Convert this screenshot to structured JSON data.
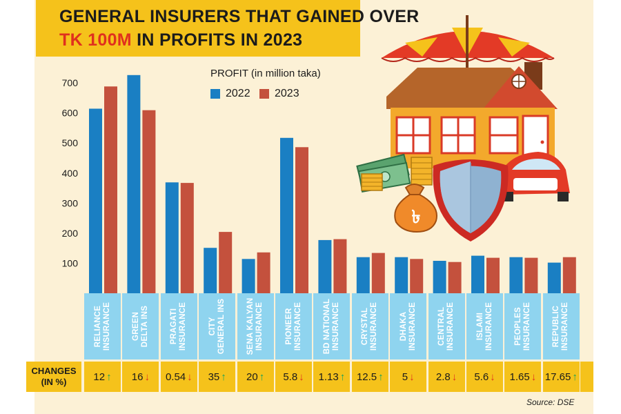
{
  "header": {
    "title_line1": "GENERAL INSURERS THAT GAINED OVER",
    "title_line2_highlight": "TK 100M",
    "title_line2_rest": " IN PROFITS IN 2023"
  },
  "changes_label": {
    "line1": "CHANGES",
    "line2": "(IN %)"
  },
  "source": "Source: DSE",
  "illustration": {
    "icons": [
      "umbrella-icon",
      "house-icon",
      "shield-icon",
      "car-icon",
      "money-bag-icon",
      "cash-stack-icon",
      "coin-stack-icon"
    ]
  },
  "colors": {
    "series_2022": "#1a7fc3",
    "series_2023": "#c4513d",
    "title_band": "#f5c21b",
    "category_band": "#8fd4ef",
    "panel_bg": "#fcf1d6",
    "up_arrow": "#17a35a",
    "down_arrow": "#e0301e"
  },
  "chart_data": {
    "type": "bar",
    "title": "PROFIT (in million taka)",
    "ylabel": "",
    "xlabel": "",
    "ylim": [
      0,
      750
    ],
    "yticks": [
      100,
      200,
      300,
      400,
      500,
      600,
      700
    ],
    "grid": false,
    "legend": "top-center",
    "categories": [
      [
        "RELIANCE",
        "INSURANCE"
      ],
      [
        "GREEN",
        "DELTA INS"
      ],
      [
        "PRAGATI",
        "INSURANCE"
      ],
      [
        "CITY",
        "GENERAL INS"
      ],
      [
        "SENA KALYAN",
        "INSURANCE"
      ],
      [
        "PIONEER",
        "INSURANCE"
      ],
      [
        "BD NATIONAL",
        "INSURANCE"
      ],
      [
        "CRYSTAL",
        "INSURANCE"
      ],
      [
        "DHAKA",
        "INSURANCE"
      ],
      [
        "CENTRAL",
        "INSURANCE"
      ],
      [
        "ISLAMI",
        "INSURANCE"
      ],
      [
        "PEOPLES",
        "INSURANCE"
      ],
      [
        "REPUBLIC",
        "INSURANCE"
      ]
    ],
    "series": [
      {
        "name": "2022",
        "values": [
          614,
          726,
          369,
          151,
          114,
          517,
          177,
          120,
          120,
          108,
          125,
          120,
          102
        ]
      },
      {
        "name": "2023",
        "values": [
          688,
          609,
          367,
          204,
          136,
          486,
          180,
          134,
          114,
          104,
          118,
          118,
          120
        ]
      }
    ],
    "changes": [
      {
        "value": "12",
        "dir": "up"
      },
      {
        "value": "16",
        "dir": "down"
      },
      {
        "value": "0.54",
        "dir": "down"
      },
      {
        "value": "35",
        "dir": "up"
      },
      {
        "value": "20",
        "dir": "up"
      },
      {
        "value": "5.8",
        "dir": "down"
      },
      {
        "value": "1.13",
        "dir": "up"
      },
      {
        "value": "12.5",
        "dir": "up"
      },
      {
        "value": "5",
        "dir": "down"
      },
      {
        "value": "2.8",
        "dir": "down"
      },
      {
        "value": "5.6",
        "dir": "down"
      },
      {
        "value": "1.65",
        "dir": "down"
      },
      {
        "value": "17.65",
        "dir": "up"
      }
    ]
  }
}
